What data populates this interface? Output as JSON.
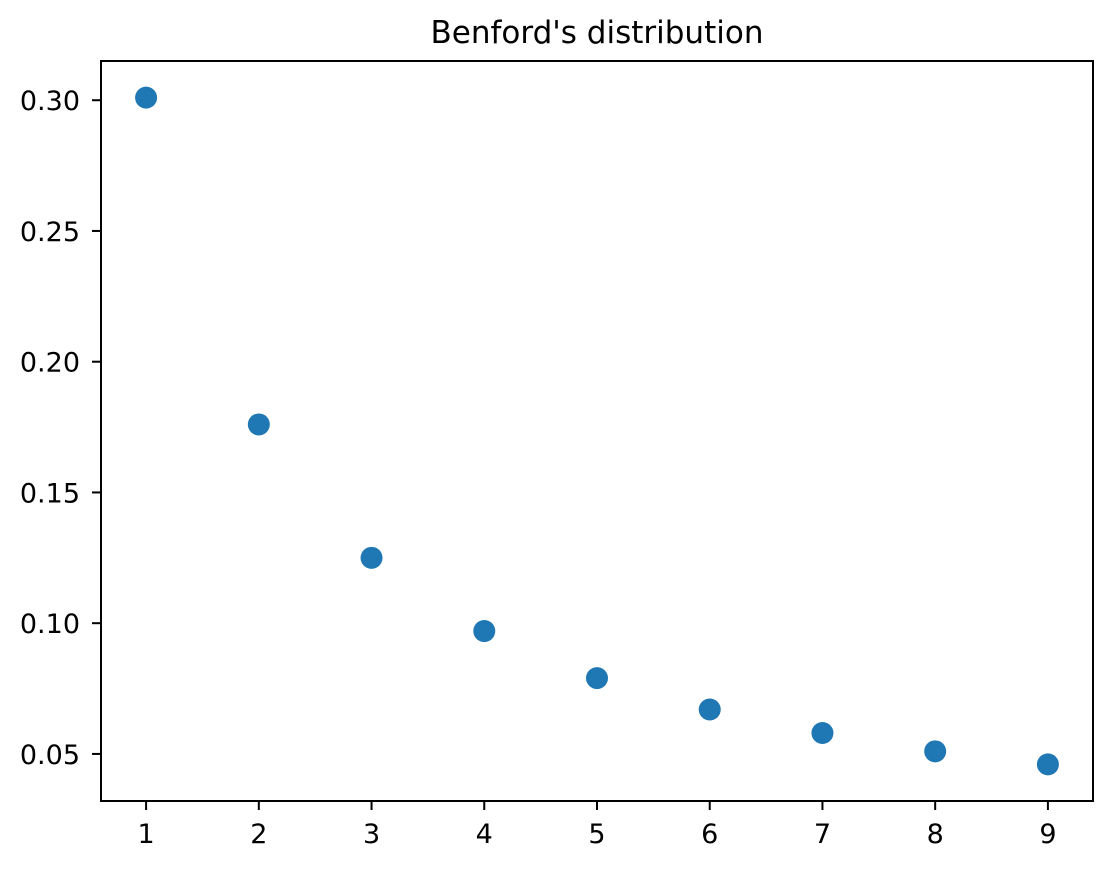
{
  "figure": {
    "background_color": "#ffffff",
    "text_color": "#000000",
    "axis_color": "#000000"
  },
  "chart_data": {
    "type": "scatter",
    "title": "Benford's distribution",
    "xlabel": "",
    "ylabel": "",
    "x": [
      1,
      2,
      3,
      4,
      5,
      6,
      7,
      8,
      9
    ],
    "y": [
      0.301,
      0.176,
      0.125,
      0.097,
      0.079,
      0.067,
      0.058,
      0.051,
      0.046
    ],
    "xlim": [
      0.6,
      9.4
    ],
    "ylim": [
      0.032,
      0.315
    ],
    "xticks": {
      "values": [
        1,
        2,
        3,
        4,
        5,
        6,
        7,
        8,
        9
      ],
      "labels": [
        "1",
        "2",
        "3",
        "4",
        "5",
        "6",
        "7",
        "8",
        "9"
      ]
    },
    "yticks": {
      "values": [
        0.05,
        0.1,
        0.15,
        0.2,
        0.25,
        0.3
      ],
      "labels": [
        "0.05",
        "0.10",
        "0.15",
        "0.20",
        "0.25",
        "0.30"
      ]
    },
    "grid": false,
    "legend": "none",
    "marker": {
      "shape": "circle",
      "color": "#1f77b4",
      "radius_px": 11
    }
  }
}
